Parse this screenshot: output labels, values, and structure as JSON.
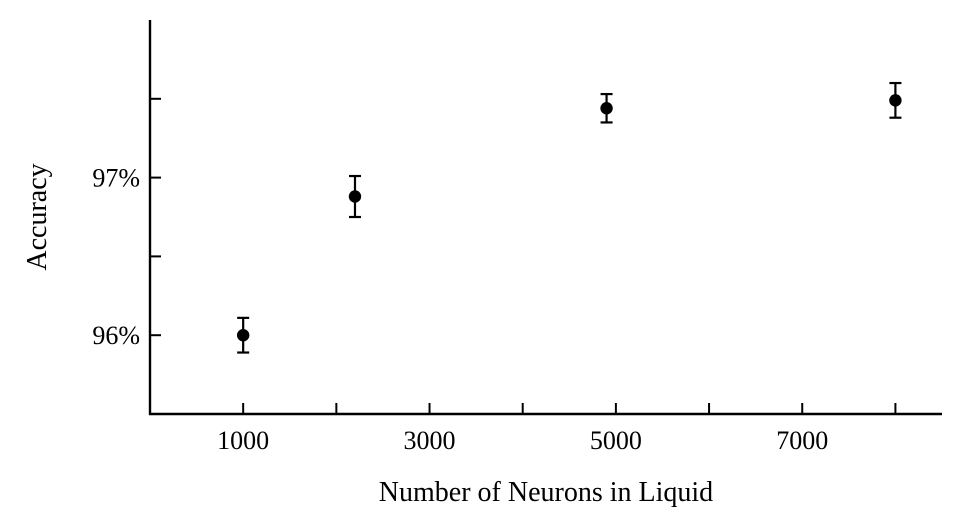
{
  "chart_data": {
    "type": "scatter",
    "title": "",
    "xlabel": "Number of Neurons in Liquid",
    "ylabel": "Accuracy",
    "xlim": [
      0,
      8500
    ],
    "ylim": [
      95.5,
      98.0
    ],
    "x_ticks_major": [
      1000,
      3000,
      5000,
      7000
    ],
    "x_tick_labels": [
      "1000",
      "3000",
      "5000",
      "7000"
    ],
    "x_ticks_minor": [
      2000,
      4000,
      6000,
      8000
    ],
    "y_ticks_major": [
      96,
      97
    ],
    "y_tick_labels": [
      "96%",
      "97%"
    ],
    "y_ticks_minor": [
      96.5,
      97.5
    ],
    "grid": false,
    "legend": "none",
    "marker_color": "#000000",
    "points": [
      {
        "x": 1000,
        "y": 96.0,
        "err_low": 0.11,
        "err_high": 0.11
      },
      {
        "x": 2200,
        "y": 96.88,
        "err_low": 0.13,
        "err_high": 0.13
      },
      {
        "x": 4900,
        "y": 97.44,
        "err_low": 0.09,
        "err_high": 0.09
      },
      {
        "x": 8000,
        "y": 97.49,
        "err_low": 0.11,
        "err_high": 0.11
      }
    ]
  }
}
